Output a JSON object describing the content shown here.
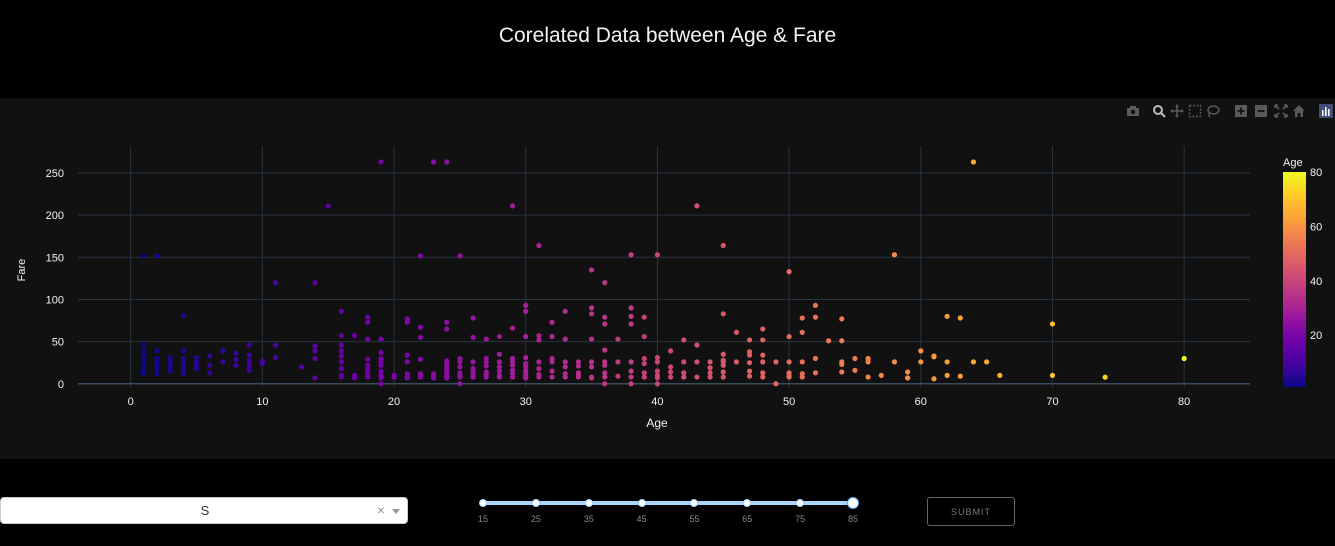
{
  "page": {
    "title": "Corelated Data between Age & Fare"
  },
  "modebar": {
    "icons": [
      "camera-icon",
      "zoom-icon",
      "pan-icon",
      "box-select-icon",
      "lasso-icon",
      "zoom-in-icon",
      "zoom-out-icon",
      "autoscale-icon",
      "reset-home-icon",
      "plotly-logo-icon"
    ]
  },
  "chart_data": {
    "type": "scatter",
    "title": "",
    "xlabel": "Age",
    "ylabel": "Fare",
    "xlim": [
      -4,
      85
    ],
    "ylim": [
      -5,
      282
    ],
    "x_ticks": [
      0,
      10,
      20,
      30,
      40,
      50,
      60,
      70,
      80
    ],
    "y_ticks": [
      0,
      50,
      100,
      150,
      200,
      250
    ],
    "grid": true,
    "colorscale": [
      "#0d0887",
      "#46039f",
      "#7201a8",
      "#9c179e",
      "#bd3786",
      "#d8576b",
      "#ed7953",
      "#fb9f3a",
      "#fdca26",
      "#f0f921"
    ],
    "colorbar": {
      "title": "Age",
      "range": [
        0.92,
        80
      ],
      "ticks": [
        20,
        40,
        60,
        80
      ]
    },
    "points": [
      [
        1,
        151.6
      ],
      [
        2,
        151.6
      ],
      [
        1,
        47
      ],
      [
        1,
        40
      ],
      [
        1,
        35
      ],
      [
        1,
        30
      ],
      [
        1,
        25
      ],
      [
        1,
        20
      ],
      [
        1,
        15
      ],
      [
        1,
        12
      ],
      [
        0.9,
        14
      ],
      [
        2,
        39
      ],
      [
        2,
        30
      ],
      [
        2,
        26
      ],
      [
        2,
        22
      ],
      [
        2,
        18
      ],
      [
        2,
        12
      ],
      [
        3,
        31
      ],
      [
        3,
        26
      ],
      [
        3,
        22
      ],
      [
        3,
        18
      ],
      [
        3,
        15
      ],
      [
        4,
        81
      ],
      [
        4,
        39
      ],
      [
        4,
        30
      ],
      [
        4,
        26
      ],
      [
        4,
        22
      ],
      [
        4,
        18
      ],
      [
        4,
        12
      ],
      [
        5,
        31
      ],
      [
        5,
        26
      ],
      [
        5,
        22
      ],
      [
        5,
        18
      ],
      [
        6,
        33
      ],
      [
        6,
        22
      ],
      [
        6,
        13
      ],
      [
        7,
        39
      ],
      [
        7,
        26
      ],
      [
        8,
        36
      ],
      [
        8,
        29
      ],
      [
        8,
        22
      ],
      [
        9,
        46
      ],
      [
        9,
        34
      ],
      [
        9,
        27
      ],
      [
        9,
        21
      ],
      [
        9,
        16
      ],
      [
        10,
        27
      ],
      [
        10,
        24
      ],
      [
        11,
        120
      ],
      [
        11,
        46
      ],
      [
        11,
        31
      ],
      [
        13,
        20
      ],
      [
        14,
        120
      ],
      [
        14,
        45
      ],
      [
        14,
        39
      ],
      [
        14,
        30
      ],
      [
        14,
        7
      ],
      [
        15,
        211
      ],
      [
        16,
        86
      ],
      [
        16,
        57
      ],
      [
        16,
        46
      ],
      [
        16,
        39
      ],
      [
        16,
        33
      ],
      [
        16,
        26
      ],
      [
        16,
        18
      ],
      [
        16,
        10
      ],
      [
        16,
        8
      ],
      [
        17,
        57
      ],
      [
        17,
        10
      ],
      [
        17,
        7
      ],
      [
        18,
        79
      ],
      [
        18,
        73
      ],
      [
        18,
        53
      ],
      [
        18,
        29
      ],
      [
        18,
        22
      ],
      [
        18,
        18
      ],
      [
        18,
        14
      ],
      [
        18,
        10
      ],
      [
        18,
        8
      ],
      [
        19,
        263
      ],
      [
        19,
        53
      ],
      [
        19,
        37
      ],
      [
        19,
        30
      ],
      [
        19,
        26
      ],
      [
        19,
        22
      ],
      [
        19,
        15
      ],
      [
        19,
        10
      ],
      [
        19,
        7
      ],
      [
        19,
        0
      ],
      [
        20,
        10
      ],
      [
        20,
        9
      ],
      [
        20,
        8
      ],
      [
        21,
        77
      ],
      [
        21,
        73
      ],
      [
        21,
        34
      ],
      [
        21,
        26
      ],
      [
        21,
        12
      ],
      [
        21,
        8
      ],
      [
        21,
        7
      ],
      [
        22,
        151.6
      ],
      [
        22,
        67
      ],
      [
        22,
        55
      ],
      [
        22,
        29
      ],
      [
        22,
        12
      ],
      [
        22,
        10
      ],
      [
        22,
        9
      ],
      [
        22,
        8
      ],
      [
        23,
        263
      ],
      [
        23,
        12
      ],
      [
        23,
        10
      ],
      [
        23,
        8
      ],
      [
        23,
        7
      ],
      [
        24,
        263
      ],
      [
        24,
        73
      ],
      [
        24,
        65
      ],
      [
        24,
        27
      ],
      [
        24,
        23
      ],
      [
        24,
        19
      ],
      [
        24,
        16
      ],
      [
        24,
        13
      ],
      [
        24,
        10
      ],
      [
        24,
        8
      ],
      [
        24,
        7
      ],
      [
        25,
        151.6
      ],
      [
        25,
        30
      ],
      [
        25,
        26
      ],
      [
        25,
        20
      ],
      [
        25,
        13
      ],
      [
        25,
        10
      ],
      [
        25,
        8
      ],
      [
        25,
        0
      ],
      [
        26,
        78
      ],
      [
        26,
        55
      ],
      [
        26,
        26
      ],
      [
        26,
        18
      ],
      [
        26,
        14
      ],
      [
        26,
        10
      ],
      [
        26,
        8
      ],
      [
        27,
        53
      ],
      [
        27,
        30
      ],
      [
        27,
        26
      ],
      [
        27,
        21
      ],
      [
        27,
        14
      ],
      [
        27,
        11
      ],
      [
        27,
        8
      ],
      [
        28,
        56
      ],
      [
        28,
        35
      ],
      [
        28,
        26
      ],
      [
        28,
        20
      ],
      [
        28,
        15
      ],
      [
        28,
        8
      ],
      [
        28,
        10
      ],
      [
        29,
        211
      ],
      [
        29,
        66
      ],
      [
        29,
        30
      ],
      [
        29,
        26
      ],
      [
        29,
        22
      ],
      [
        29,
        16
      ],
      [
        29,
        12
      ],
      [
        29,
        8
      ],
      [
        30,
        93
      ],
      [
        30,
        86
      ],
      [
        30,
        56
      ],
      [
        30,
        31
      ],
      [
        30,
        24
      ],
      [
        30,
        21
      ],
      [
        30,
        16
      ],
      [
        30,
        13
      ],
      [
        30,
        10
      ],
      [
        30,
        8
      ],
      [
        30,
        7
      ],
      [
        31,
        164
      ],
      [
        31,
        57
      ],
      [
        31,
        52
      ],
      [
        31,
        26
      ],
      [
        31,
        18
      ],
      [
        31,
        11
      ],
      [
        31,
        8
      ],
      [
        32,
        73
      ],
      [
        32,
        56
      ],
      [
        32,
        30
      ],
      [
        32,
        26
      ],
      [
        32,
        15
      ],
      [
        32,
        8
      ],
      [
        33,
        86
      ],
      [
        33,
        53
      ],
      [
        33,
        26
      ],
      [
        33,
        20
      ],
      [
        33,
        12
      ],
      [
        33,
        8
      ],
      [
        34,
        26
      ],
      [
        34,
        21
      ],
      [
        34,
        13
      ],
      [
        34,
        10
      ],
      [
        34,
        8
      ],
      [
        35,
        135
      ],
      [
        35,
        90
      ],
      [
        35,
        83
      ],
      [
        35,
        53
      ],
      [
        35,
        26
      ],
      [
        35,
        20
      ],
      [
        35,
        8
      ],
      [
        35,
        7
      ],
      [
        36,
        120
      ],
      [
        36,
        79
      ],
      [
        36,
        71
      ],
      [
        36,
        40
      ],
      [
        36,
        26
      ],
      [
        36,
        22
      ],
      [
        36,
        13
      ],
      [
        36,
        8
      ],
      [
        36,
        0
      ],
      [
        37,
        53
      ],
      [
        37,
        26
      ],
      [
        37,
        9
      ],
      [
        38,
        153
      ],
      [
        38,
        90
      ],
      [
        38,
        80
      ],
      [
        38,
        71
      ],
      [
        38,
        26
      ],
      [
        38,
        15
      ],
      [
        38,
        8
      ],
      [
        38,
        0
      ],
      [
        39,
        79
      ],
      [
        39,
        56
      ],
      [
        39,
        30
      ],
      [
        39,
        24
      ],
      [
        39,
        13
      ],
      [
        39,
        8
      ],
      [
        40,
        153
      ],
      [
        40,
        31
      ],
      [
        40,
        26
      ],
      [
        40,
        15
      ],
      [
        40,
        10
      ],
      [
        40,
        7
      ],
      [
        40,
        0
      ],
      [
        41,
        39
      ],
      [
        41,
        20
      ],
      [
        41,
        14
      ],
      [
        41,
        8
      ],
      [
        42,
        52
      ],
      [
        42,
        26
      ],
      [
        42,
        13
      ],
      [
        42,
        8
      ],
      [
        43,
        211
      ],
      [
        43,
        46
      ],
      [
        43,
        26
      ],
      [
        43,
        8
      ],
      [
        44,
        26
      ],
      [
        44,
        19
      ],
      [
        44,
        13
      ],
      [
        44,
        8
      ],
      [
        45,
        164
      ],
      [
        45,
        83
      ],
      [
        45,
        35
      ],
      [
        45,
        28
      ],
      [
        45,
        26
      ],
      [
        45,
        22
      ],
      [
        45,
        14
      ],
      [
        45,
        8
      ],
      [
        46,
        61
      ],
      [
        46,
        26
      ],
      [
        47,
        52
      ],
      [
        47,
        38
      ],
      [
        47,
        34
      ],
      [
        47,
        25
      ],
      [
        47,
        15
      ],
      [
        47,
        9
      ],
      [
        48,
        65
      ],
      [
        48,
        52
      ],
      [
        48,
        34
      ],
      [
        48,
        26
      ],
      [
        48,
        13
      ],
      [
        48,
        8
      ],
      [
        49,
        26
      ],
      [
        49,
        0
      ],
      [
        50,
        133
      ],
      [
        50,
        56
      ],
      [
        50,
        26
      ],
      [
        50,
        13
      ],
      [
        50,
        10
      ],
      [
        50,
        8
      ],
      [
        51,
        78
      ],
      [
        51,
        61
      ],
      [
        51,
        26
      ],
      [
        51,
        12
      ],
      [
        51,
        8
      ],
      [
        52,
        93
      ],
      [
        52,
        79
      ],
      [
        52,
        30
      ],
      [
        52,
        13
      ],
      [
        53,
        51
      ],
      [
        54,
        77
      ],
      [
        54,
        51
      ],
      [
        54,
        26
      ],
      [
        54,
        23
      ],
      [
        54,
        14
      ],
      [
        55,
        30
      ],
      [
        55,
        16
      ],
      [
        56,
        26
      ],
      [
        56,
        30
      ],
      [
        56,
        8
      ],
      [
        57,
        10
      ],
      [
        58,
        153
      ],
      [
        58,
        26
      ],
      [
        59,
        14
      ],
      [
        59,
        7
      ],
      [
        60,
        39
      ],
      [
        60,
        26
      ],
      [
        61,
        33
      ],
      [
        61,
        32
      ],
      [
        61,
        6
      ],
      [
        62,
        80
      ],
      [
        62,
        26
      ],
      [
        62,
        10
      ],
      [
        63,
        78
      ],
      [
        63,
        9
      ],
      [
        64,
        263
      ],
      [
        64,
        26
      ],
      [
        65,
        26
      ],
      [
        66,
        10
      ],
      [
        70,
        71
      ],
      [
        70,
        10
      ],
      [
        74,
        7.8
      ],
      [
        80,
        30
      ]
    ]
  },
  "controls": {
    "dropdown": {
      "value": "S",
      "clear_symbol": "×"
    },
    "slider": {
      "marks": [
        "15",
        "25",
        "35",
        "45",
        "55",
        "65",
        "75",
        "85"
      ],
      "range": [
        15,
        85
      ],
      "selected": [
        15,
        85
      ]
    },
    "submit_label": "SUBMIT"
  }
}
